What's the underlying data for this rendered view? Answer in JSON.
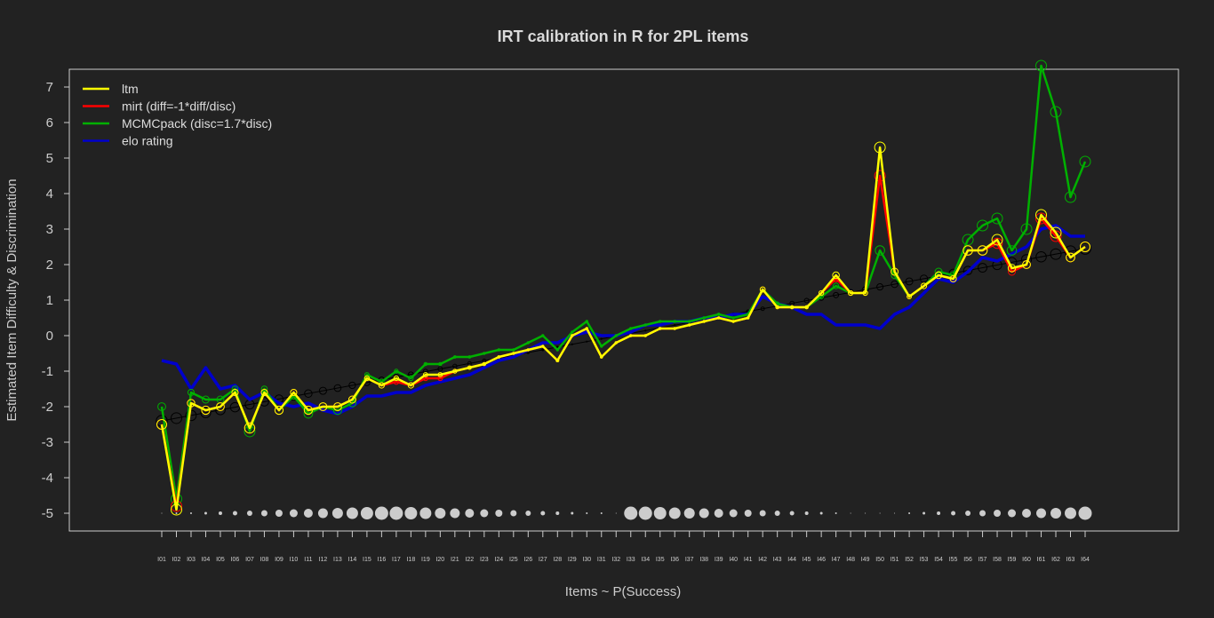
{
  "chart_data": {
    "type": "line",
    "title": "IRT calibration in R for 2PL items",
    "xlabel": "Items ~ P(Success)",
    "ylabel": "Estimated Item Difficulty & Discrimination",
    "ylim": [
      -5,
      7
    ],
    "yticks": [
      -5,
      -4,
      -3,
      -2,
      -1,
      0,
      1,
      2,
      3,
      4,
      5,
      6,
      7
    ],
    "legend_position": "top-left",
    "categories": [
      "I01",
      "I02",
      "I03",
      "I04",
      "I05",
      "I06",
      "I07",
      "I08",
      "I09",
      "I10",
      "I11",
      "I12",
      "I13",
      "I14",
      "I15",
      "I16",
      "I17",
      "I18",
      "I19",
      "I20",
      "I21",
      "I22",
      "I23",
      "I24",
      "I25",
      "I26",
      "I27",
      "I28",
      "I29",
      "I30",
      "I31",
      "I32",
      "I33",
      "I34",
      "I35",
      "I36",
      "I37",
      "I38",
      "I39",
      "I40",
      "I41",
      "I42",
      "I43",
      "I44",
      "I45",
      "I46",
      "I47",
      "I48",
      "I49",
      "I50",
      "I51",
      "I52",
      "I53",
      "I54",
      "I55",
      "I56",
      "I57",
      "I58",
      "I59",
      "I60",
      "I61",
      "I62",
      "I63",
      "I64"
    ],
    "series": [
      {
        "name": "ltm",
        "color": "#ffff00",
        "values": [
          -2.5,
          -4.9,
          -1.9,
          -2.1,
          -2.0,
          -1.6,
          -2.6,
          -1.6,
          -2.1,
          -1.6,
          -2.1,
          -2.0,
          -2.0,
          -1.8,
          -1.2,
          -1.4,
          -1.2,
          -1.4,
          -1.1,
          -1.1,
          -1.0,
          -0.9,
          -0.8,
          -0.6,
          -0.5,
          -0.4,
          -0.3,
          -0.7,
          0.0,
          0.2,
          -0.6,
          -0.2,
          0.0,
          0.0,
          0.2,
          0.2,
          0.3,
          0.4,
          0.5,
          0.4,
          0.5,
          1.3,
          0.8,
          0.8,
          0.8,
          1.2,
          1.7,
          1.2,
          1.2,
          5.3,
          1.8,
          1.1,
          1.4,
          1.7,
          1.6,
          2.4,
          2.4,
          2.7,
          1.9,
          2.0,
          3.4,
          2.9,
          2.2,
          2.5
        ]
      },
      {
        "name": "mirt (diff=-1*diff/disc)",
        "color": "#ff0000",
        "values": [
          -2.5,
          -4.8,
          -1.9,
          -2.1,
          -2.0,
          -1.6,
          -2.6,
          -1.6,
          -2.1,
          -1.6,
          -2.1,
          -2.0,
          -2.0,
          -1.8,
          -1.2,
          -1.4,
          -1.3,
          -1.4,
          -1.2,
          -1.2,
          -1.0,
          -0.9,
          -0.8,
          -0.6,
          -0.5,
          -0.4,
          -0.3,
          -0.7,
          0.0,
          0.2,
          -0.6,
          -0.2,
          0.0,
          0.0,
          0.2,
          0.2,
          0.3,
          0.4,
          0.5,
          0.4,
          0.5,
          1.3,
          0.8,
          0.8,
          0.8,
          1.2,
          1.6,
          1.2,
          1.2,
          4.5,
          1.8,
          1.1,
          1.4,
          1.7,
          1.6,
          2.4,
          2.4,
          2.6,
          1.8,
          2.0,
          3.3,
          2.8,
          2.2,
          2.5
        ]
      },
      {
        "name": "MCMCpack (disc=1.7*disc)",
        "color": "#00b000",
        "values": [
          -2.0,
          -4.6,
          -1.6,
          -1.8,
          -1.8,
          -1.5,
          -2.7,
          -1.5,
          -2.1,
          -1.7,
          -2.2,
          -2.0,
          -2.1,
          -1.9,
          -1.1,
          -1.3,
          -1.0,
          -1.2,
          -0.8,
          -0.8,
          -0.6,
          -0.6,
          -0.5,
          -0.4,
          -0.4,
          -0.2,
          0.0,
          -0.4,
          0.1,
          0.4,
          -0.3,
          0.0,
          0.2,
          0.3,
          0.4,
          0.4,
          0.4,
          0.5,
          0.6,
          0.5,
          0.6,
          1.3,
          0.9,
          0.8,
          0.8,
          1.1,
          1.4,
          1.2,
          1.2,
          2.4,
          1.7,
          1.1,
          1.4,
          1.8,
          1.7,
          2.7,
          3.1,
          3.3,
          2.4,
          3.0,
          7.6,
          6.3,
          3.9,
          4.9
        ]
      },
      {
        "name": "elo rating",
        "color": "#0000cc",
        "values": [
          -0.7,
          -0.8,
          -1.5,
          -0.9,
          -1.5,
          -1.4,
          -1.8,
          -1.6,
          -1.9,
          -2.0,
          -1.9,
          -2.1,
          -2.2,
          -2.0,
          -1.7,
          -1.7,
          -1.6,
          -1.6,
          -1.4,
          -1.3,
          -1.2,
          -1.1,
          -0.9,
          -0.7,
          -0.6,
          -0.4,
          -0.2,
          -0.2,
          0.0,
          0.1,
          0.0,
          0.0,
          0.1,
          0.3,
          0.3,
          0.4,
          0.4,
          0.5,
          0.5,
          0.6,
          0.6,
          1.1,
          0.9,
          0.8,
          0.6,
          0.6,
          0.3,
          0.3,
          0.3,
          0.2,
          0.6,
          0.8,
          1.2,
          1.6,
          1.5,
          1.8,
          2.2,
          2.1,
          2.3,
          2.5,
          3.0,
          3.1,
          2.8,
          2.8
        ]
      }
    ],
    "reference_line": {
      "color": "#000000",
      "from": -2.4,
      "to": 2.45
    },
    "point_size_row": {
      "y": -5,
      "color": "#cccccc",
      "sizes": [
        0.5,
        1,
        1,
        1.5,
        2,
        2.5,
        3,
        3.5,
        4,
        4.5,
        5,
        5.5,
        6,
        6.5,
        7,
        7.5,
        7.5,
        7,
        6.5,
        6,
        5.5,
        5,
        4.5,
        4,
        3.5,
        3,
        2.5,
        2,
        1.5,
        1,
        1,
        0.5,
        7.5,
        7.5,
        7,
        6.5,
        6,
        5.5,
        5,
        4.5,
        4,
        3.5,
        3,
        2.5,
        2,
        1.5,
        1,
        0.5,
        0.5,
        0.5,
        0.5,
        1,
        1.5,
        2,
        2.5,
        3,
        3.5,
        4,
        4.5,
        5,
        5.5,
        6,
        6.5,
        7.5
      ]
    }
  }
}
